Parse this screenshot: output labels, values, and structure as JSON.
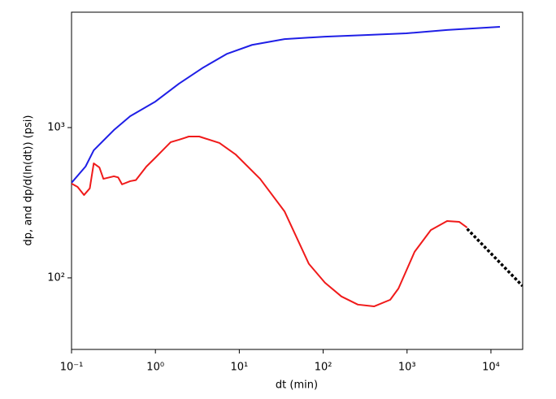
{
  "chart_data": {
    "type": "line",
    "xlabel": "dt (min)",
    "ylabel": "dp, and dp/d(ln(dt)) (psi)",
    "xscale": "log",
    "yscale": "log",
    "xlim": [
      0.1,
      23900
    ],
    "ylim": [
      33.4,
      5860
    ],
    "xticks": [
      {
        "value": 0.1,
        "label": "10⁻¹"
      },
      {
        "value": 1,
        "label": "10⁰"
      },
      {
        "value": 10,
        "label": "10¹"
      },
      {
        "value": 100,
        "label": "10²"
      },
      {
        "value": 1000,
        "label": "10³"
      },
      {
        "value": 10000,
        "label": "10⁴"
      }
    ],
    "yticks": [
      {
        "value": 100,
        "label": "10²"
      },
      {
        "value": 1000,
        "label": "10³"
      }
    ],
    "series": [
      {
        "color": "#1f1fe6",
        "linestyle": "solid",
        "x": [
          0.1,
          0.147,
          0.184,
          0.32,
          0.5,
          1,
          1.91,
          3.72,
          7.16,
          14.2,
          34.6,
          105,
          321,
          980,
          3000,
          12800
        ],
        "values": [
          429,
          551,
          706,
          963,
          1190,
          1490,
          1960,
          2510,
          3100,
          3550,
          3880,
          4030,
          4130,
          4240,
          4460,
          4680
        ]
      },
      {
        "color": "#f01a1a",
        "linestyle": "solid",
        "x": [
          0.1,
          0.118,
          0.141,
          0.165,
          0.184,
          0.215,
          0.24,
          0.32,
          0.36,
          0.4,
          0.5,
          0.585,
          0.78,
          1,
          1.22,
          1.52,
          1.91,
          2.18,
          2.5,
          3.33,
          5.8,
          9.0,
          17.7,
          34.6,
          67.5,
          105,
          165,
          259,
          404,
          630,
          790,
          1230,
          1920,
          3000,
          4180,
          5200
        ],
        "values": [
          424,
          403,
          356,
          394,
          578,
          543,
          456,
          474,
          466,
          419,
          440,
          447,
          550,
          631,
          706,
          800,
          830,
          850,
          872,
          872,
          790,
          664,
          456,
          277,
          124,
          92.9,
          75.2,
          66.4,
          64.6,
          71.5,
          85,
          149,
          208,
          239,
          236,
          216
        ]
      },
      {
        "color": "#000000",
        "linestyle": "dotted",
        "x": [
          5200,
          23800
        ],
        "values": [
          212,
          88.3
        ]
      }
    ]
  }
}
